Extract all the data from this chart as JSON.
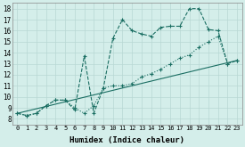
{
  "title": "",
  "xlabel": "Humidex (Indice chaleur)",
  "background_color": "#d4eeea",
  "grid_color": "#b8d8d4",
  "line_color": "#1a6e62",
  "xlim": [
    -0.5,
    23.5
  ],
  "ylim": [
    7.5,
    18.5
  ],
  "xtick_labels": [
    "0",
    "1",
    "2",
    "3",
    "4",
    "5",
    "6",
    "7",
    "8",
    "9",
    "10",
    "11",
    "12",
    "13",
    "14",
    "15",
    "16",
    "17",
    "18",
    "19",
    "20",
    "21",
    "22",
    "23"
  ],
  "ytick_labels": [
    "8",
    "9",
    "10",
    "11",
    "12",
    "13",
    "14",
    "15",
    "16",
    "17",
    "18"
  ],
  "yticks": [
    8,
    9,
    10,
    11,
    12,
    13,
    14,
    15,
    16,
    17,
    18
  ],
  "line1_x": [
    0,
    1,
    2,
    3,
    4,
    5,
    6,
    7,
    8,
    9,
    10,
    11,
    12,
    13,
    14,
    15,
    16,
    17,
    18,
    19,
    20,
    21,
    22,
    23
  ],
  "line1_y": [
    8.5,
    8.3,
    8.5,
    9.2,
    9.7,
    9.7,
    9.0,
    8.5,
    9.2,
    10.8,
    11.0,
    11.0,
    11.2,
    11.8,
    12.1,
    12.5,
    13.0,
    13.5,
    13.8,
    14.5,
    15.0,
    15.5,
    13.0,
    13.3
  ],
  "line2_x": [
    0,
    1,
    2,
    3,
    4,
    5,
    6,
    7,
    8,
    9,
    10,
    11,
    12,
    13,
    14,
    15,
    16,
    17,
    18,
    19,
    20,
    21,
    22,
    23
  ],
  "line2_y": [
    8.5,
    8.3,
    8.5,
    9.2,
    9.7,
    9.7,
    8.8,
    13.7,
    8.5,
    10.8,
    15.3,
    17.0,
    16.0,
    15.7,
    15.5,
    16.3,
    16.4,
    16.4,
    18.0,
    18.0,
    16.1,
    16.0,
    13.0,
    13.3
  ],
  "line3_x": [
    0,
    23
  ],
  "line3_y": [
    8.5,
    13.3
  ]
}
